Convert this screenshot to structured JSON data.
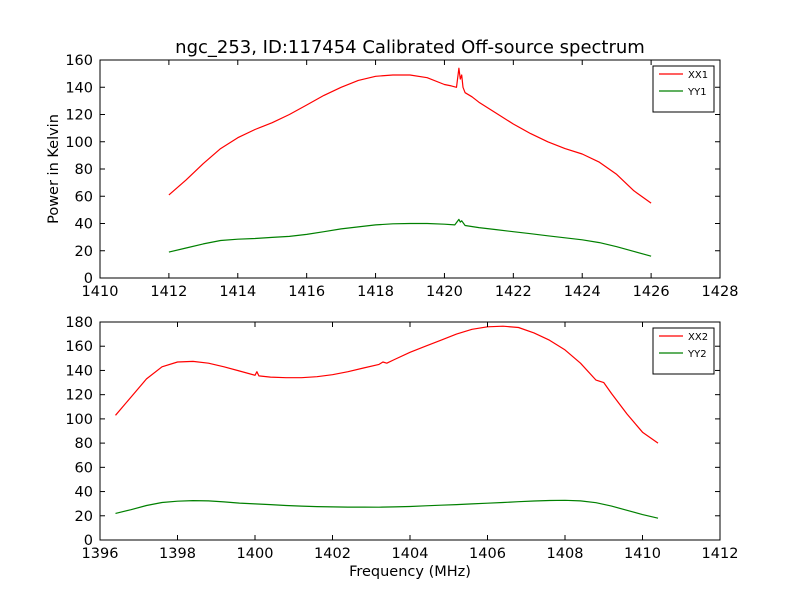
{
  "figure": {
    "title": "ngc_253, ID:117454 Calibrated Off-source spectrum",
    "background": "#ffffff"
  },
  "chart_data": [
    {
      "type": "line",
      "xlabel": "",
      "ylabel": "Power in Kelvin",
      "xlim": [
        1410,
        1428
      ],
      "ylim": [
        0,
        160
      ],
      "xticks": [
        1410,
        1412,
        1414,
        1416,
        1418,
        1420,
        1422,
        1424,
        1426,
        1428
      ],
      "yticks": [
        0,
        20,
        40,
        60,
        80,
        100,
        120,
        140,
        160
      ],
      "grid": false,
      "legend": "top-right",
      "series": [
        {
          "name": "XX1",
          "color": "#ff0000",
          "x": [
            1412.0,
            1412.5,
            1413.0,
            1413.5,
            1414.0,
            1414.5,
            1415.0,
            1415.5,
            1416.0,
            1416.5,
            1417.0,
            1417.5,
            1418.0,
            1418.5,
            1419.0,
            1419.5,
            1420.0,
            1420.2,
            1420.35,
            1420.42,
            1420.46,
            1420.5,
            1420.54,
            1420.6,
            1420.8,
            1421.0,
            1421.5,
            1422.0,
            1422.5,
            1423.0,
            1423.5,
            1424.0,
            1424.5,
            1425.0,
            1425.5,
            1426.0
          ],
          "y": [
            61,
            72,
            84,
            95,
            103,
            109,
            114,
            120,
            127,
            134,
            140,
            145,
            148,
            149,
            149,
            147,
            142,
            141,
            140,
            154,
            146,
            149,
            140,
            136,
            133,
            129,
            121,
            113,
            106,
            100,
            95,
            91,
            85,
            76,
            64,
            55
          ]
        },
        {
          "name": "YY1",
          "color": "#008000",
          "x": [
            1412.0,
            1412.5,
            1413.0,
            1413.5,
            1414.0,
            1414.5,
            1415.0,
            1415.5,
            1416.0,
            1416.5,
            1417.0,
            1417.5,
            1418.0,
            1418.5,
            1419.0,
            1419.5,
            1420.0,
            1420.3,
            1420.42,
            1420.46,
            1420.5,
            1420.6,
            1421.0,
            1421.5,
            1422.0,
            1422.5,
            1423.0,
            1423.5,
            1424.0,
            1424.5,
            1425.0,
            1425.5,
            1426.0
          ],
          "y": [
            19,
            22,
            25,
            27.5,
            28.5,
            29,
            29.8,
            30.5,
            32,
            34,
            36,
            37.5,
            39,
            39.8,
            40,
            40,
            39.5,
            39,
            43,
            41,
            42,
            38.5,
            37,
            35.5,
            34,
            32.5,
            31,
            29.5,
            28,
            26,
            23,
            19.5,
            16
          ]
        }
      ]
    },
    {
      "type": "line",
      "xlabel": "Frequency (MHz)",
      "ylabel": "",
      "xlim": [
        1396,
        1412
      ],
      "ylim": [
        0,
        180
      ],
      "xticks": [
        1396,
        1398,
        1400,
        1402,
        1404,
        1406,
        1408,
        1410,
        1412
      ],
      "yticks": [
        0,
        20,
        40,
        60,
        80,
        100,
        120,
        140,
        160,
        180
      ],
      "grid": false,
      "legend": "top-right",
      "series": [
        {
          "name": "XX2",
          "color": "#ff0000",
          "x": [
            1396.4,
            1396.8,
            1397.2,
            1397.6,
            1398.0,
            1398.4,
            1398.8,
            1399.2,
            1399.6,
            1400.0,
            1400.05,
            1400.1,
            1400.4,
            1400.8,
            1401.2,
            1401.6,
            1402.0,
            1402.4,
            1402.8,
            1403.2,
            1403.3,
            1403.4,
            1403.6,
            1404.0,
            1404.4,
            1404.8,
            1405.2,
            1405.6,
            1406.0,
            1406.4,
            1406.8,
            1407.2,
            1407.6,
            1408.0,
            1408.4,
            1408.8,
            1409.0,
            1409.2,
            1409.6,
            1410.0,
            1410.4
          ],
          "y": [
            103,
            118,
            133,
            143,
            147,
            147.5,
            146,
            143,
            139.5,
            136,
            139,
            135.5,
            134.5,
            134,
            134,
            134.8,
            136.5,
            139,
            142,
            145,
            147,
            146,
            149,
            155,
            160,
            165,
            170,
            174,
            176,
            176.5,
            175.5,
            171,
            165,
            157,
            146,
            132,
            130,
            121,
            104,
            89,
            80
          ]
        },
        {
          "name": "YY2",
          "color": "#008000",
          "x": [
            1396.4,
            1396.8,
            1397.2,
            1397.6,
            1398.0,
            1398.4,
            1398.8,
            1399.2,
            1399.6,
            1400.0,
            1400.4,
            1400.8,
            1401.2,
            1401.6,
            1402.0,
            1402.4,
            1402.8,
            1403.2,
            1403.6,
            1404.0,
            1404.4,
            1404.8,
            1405.2,
            1405.6,
            1406.0,
            1406.4,
            1406.8,
            1407.2,
            1407.6,
            1408.0,
            1408.4,
            1408.8,
            1409.2,
            1409.6,
            1410.0,
            1410.4
          ],
          "y": [
            22,
            25,
            28.5,
            31,
            32,
            32.5,
            32.3,
            31.5,
            30.5,
            29.8,
            29.2,
            28.5,
            28,
            27.6,
            27.3,
            27.2,
            27.2,
            27.1,
            27.3,
            27.7,
            28.2,
            28.7,
            29.2,
            29.8,
            30.4,
            31,
            31.6,
            32.2,
            32.6,
            32.8,
            32.3,
            30.8,
            28,
            24.5,
            21,
            18
          ]
        }
      ]
    }
  ]
}
